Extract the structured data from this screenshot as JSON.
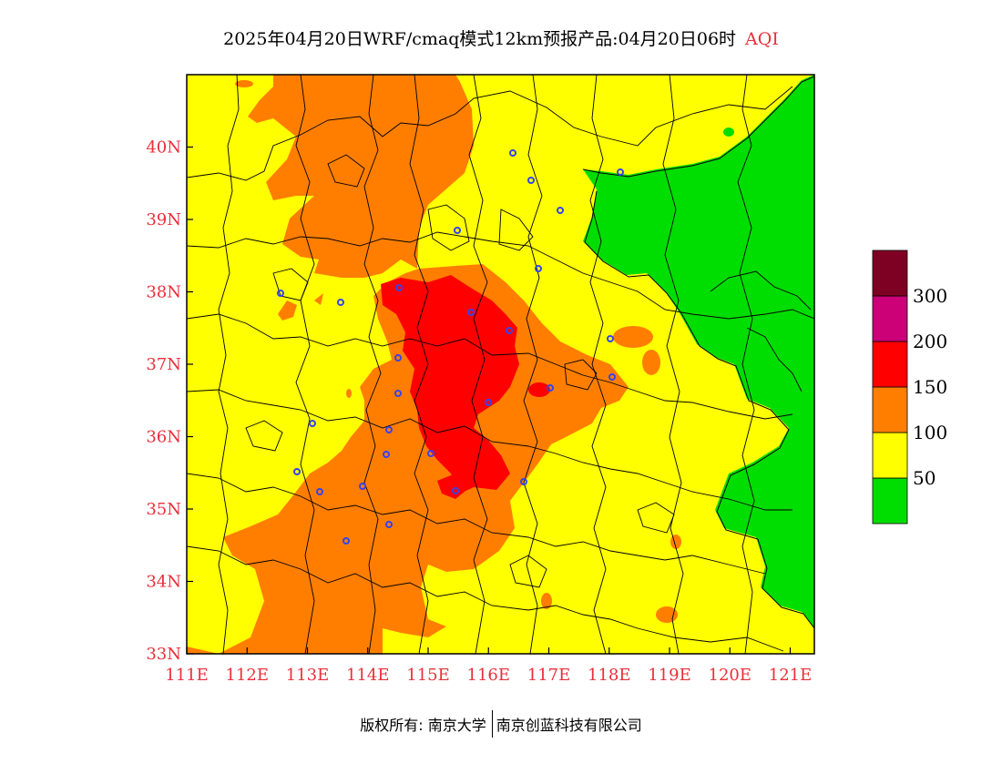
{
  "map": {
    "title": "2025年04月20日WRF/cmaq模式12km预报产品:04月20日06时",
    "variable": "AQI",
    "x_ticks": [
      "111E",
      "112E",
      "113E",
      "114E",
      "115E",
      "116E",
      "117E",
      "118E",
      "119E",
      "120E",
      "121E"
    ],
    "y_ticks": [
      "33N",
      "34N",
      "35N",
      "36N",
      "37N",
      "38N",
      "39N",
      "40N"
    ],
    "lon_range": [
      111,
      121.4
    ],
    "lat_range": [
      33,
      41
    ],
    "legend": {
      "labels": [
        "50",
        "100",
        "150",
        "200",
        "300"
      ],
      "colors": [
        "#00dd00",
        "#ffff00",
        "#ff7e00",
        "#ff0000",
        "#cc0077",
        "#7e0023"
      ]
    }
  },
  "footer": {
    "copyright": "版权所有: 南京大学",
    "company": "南京创蓝科技有限公司"
  }
}
